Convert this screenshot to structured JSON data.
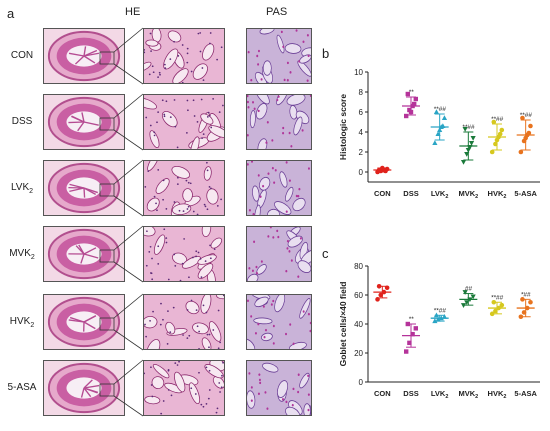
{
  "panel_a": {
    "letter": "a",
    "col_he": "HE",
    "col_pas": "PAS",
    "rows": [
      {
        "label": "CON",
        "sub": ""
      },
      {
        "label": "DSS",
        "sub": ""
      },
      {
        "label": "LVK",
        "sub": "2"
      },
      {
        "label": "MVK",
        "sub": "2"
      },
      {
        "label": "HVK",
        "sub": "2"
      },
      {
        "label": "5-ASA",
        "sub": ""
      }
    ]
  },
  "chart_data": [
    {
      "panel": "b",
      "type": "scatter",
      "ylabel": "Histologic score",
      "ylim": [
        -1,
        10
      ],
      "yticks": [
        0,
        2,
        4,
        6,
        8,
        10
      ],
      "categories": [
        "CON",
        "DSS",
        "LVK2",
        "MVK2",
        "HVK2",
        "5-ASA"
      ],
      "category_labels": [
        {
          "base": "CON",
          "sub": ""
        },
        {
          "base": "DSS",
          "sub": ""
        },
        {
          "base": "LVK",
          "sub": "2"
        },
        {
          "base": "MVK",
          "sub": "2"
        },
        {
          "base": "HVK",
          "sub": "2"
        },
        {
          "base": "5-ASA",
          "sub": ""
        }
      ],
      "colors": [
        "#e0231c",
        "#b5339a",
        "#2aa5c5",
        "#1a7a3a",
        "#d6c81e",
        "#e8731e"
      ],
      "markers": [
        "circle",
        "square",
        "triangle",
        "triangle-down",
        "circle",
        "circle"
      ],
      "means": [
        0.2,
        6.6,
        4.5,
        2.6,
        3.5,
        3.7
      ],
      "sd": [
        0.2,
        0.9,
        1.3,
        1.4,
        1.3,
        1.5
      ],
      "points": [
        [
          0.0,
          0.1,
          0.2,
          0.3,
          0.2,
          0.4,
          0.1
        ],
        [
          5.6,
          6.2,
          6.6,
          7.3,
          7.8,
          6.0,
          6.8
        ],
        [
          2.9,
          3.8,
          4.5,
          5.4,
          6.0,
          4.2,
          4.6
        ],
        [
          1.0,
          1.8,
          2.5,
          3.4,
          4.3,
          2.2,
          2.9
        ],
        [
          2.0,
          2.8,
          3.5,
          4.2,
          5.0,
          3.2,
          3.8
        ],
        [
          2.0,
          3.1,
          3.7,
          4.6,
          5.4,
          3.4,
          3.9
        ]
      ],
      "annotations": [
        "",
        "**",
        "**##",
        "**##",
        "**##",
        "**##"
      ]
    },
    {
      "panel": "c",
      "type": "scatter",
      "ylabel": "Goblet cells/×40 field",
      "ylim": [
        0,
        80
      ],
      "yticks": [
        0,
        20,
        40,
        60,
        80
      ],
      "categories": [
        "CON",
        "DSS",
        "LVK2",
        "MVK2",
        "HVK2",
        "5-ASA"
      ],
      "category_labels": [
        {
          "base": "CON",
          "sub": ""
        },
        {
          "base": "DSS",
          "sub": ""
        },
        {
          "base": "LVK",
          "sub": "2"
        },
        {
          "base": "MVK",
          "sub": "2"
        },
        {
          "base": "HVK",
          "sub": "2"
        },
        {
          "base": "5-ASA",
          "sub": ""
        }
      ],
      "colors": [
        "#e0231c",
        "#b5339a",
        "#2aa5c5",
        "#1a7a3a",
        "#d6c81e",
        "#e8731e"
      ],
      "markers": [
        "circle",
        "square",
        "triangle",
        "triangle-down",
        "circle",
        "circle"
      ],
      "means": [
        62,
        32,
        44,
        57,
        51,
        51
      ],
      "sd": [
        4,
        8,
        2,
        4,
        4,
        6
      ],
      "points": [
        [
          57,
          60,
          62,
          65,
          66
        ],
        [
          21,
          27,
          33,
          37,
          40
        ],
        [
          42,
          43,
          44,
          45,
          46
        ],
        [
          53,
          55,
          57,
          59,
          62
        ],
        [
          47,
          49,
          51,
          53,
          55
        ],
        [
          45,
          48,
          51,
          55,
          57
        ]
      ],
      "annotations": [
        "",
        "**",
        "**##",
        "##",
        "**##",
        "*##"
      ]
    }
  ]
}
